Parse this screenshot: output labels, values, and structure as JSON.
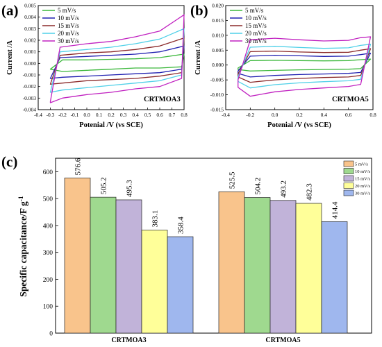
{
  "chart_data": [
    {
      "panel": "(a)",
      "type": "line",
      "subtype": "cyclic-voltammogram",
      "title": "",
      "xlabel": "Potenial /V (vs SCE)",
      "ylabel": "Current /A",
      "sample_label": "CRTMOA3",
      "xlim": [
        -0.4,
        0.8
      ],
      "ylim": [
        -0.004,
        0.005
      ],
      "xticks": [
        "-0.4",
        "-0.3",
        "-0.2",
        "-0.1",
        "0.0",
        "0.1",
        "0.2",
        "0.3",
        "0.4",
        "0.5",
        "0.6",
        "0.7",
        "0.8"
      ],
      "yticks": [
        "-0.004",
        "-0.003",
        "-0.002",
        "-0.001",
        "0.000",
        "0.001",
        "0.002",
        "0.003",
        "0.004",
        "0.005"
      ],
      "legend_position": "top-left",
      "series": [
        {
          "name": "5 mV/s",
          "color": "#3cb83c",
          "x": [
            -0.3,
            -0.2,
            0.0,
            0.2,
            0.4,
            0.6,
            0.8,
            0.78,
            0.6,
            0.4,
            0.2,
            0.0,
            -0.2,
            -0.3
          ],
          "y": [
            -0.0005,
            0.0003,
            0.0003,
            0.00035,
            0.0004,
            0.0005,
            0.0008,
            -0.0003,
            -0.0004,
            -0.0004,
            -0.0005,
            -0.0006,
            -0.0007,
            -0.0005
          ]
        },
        {
          "name": "10 mV/s",
          "color": "#1f1fb0",
          "x": [
            -0.3,
            -0.22,
            0.0,
            0.2,
            0.4,
            0.6,
            0.8,
            0.78,
            0.6,
            0.4,
            0.2,
            0.0,
            -0.2,
            -0.3
          ],
          "y": [
            -0.0013,
            0.0005,
            0.0006,
            0.0007,
            0.0008,
            0.001,
            0.0015,
            -0.0005,
            -0.0008,
            -0.0009,
            -0.001,
            -0.0011,
            -0.0012,
            -0.0013
          ]
        },
        {
          "name": "15 mV/s",
          "color": "#8b2a2a",
          "x": [
            -0.3,
            -0.22,
            0.0,
            0.2,
            0.4,
            0.6,
            0.8,
            0.78,
            0.6,
            0.4,
            0.2,
            0.0,
            -0.2,
            -0.3
          ],
          "y": [
            -0.0018,
            0.0007,
            0.0009,
            0.001,
            0.0012,
            0.0015,
            0.0022,
            -0.0008,
            -0.0011,
            -0.0013,
            -0.0014,
            -0.0015,
            -0.0017,
            -0.0018
          ]
        },
        {
          "name": "20 mV/s",
          "color": "#4fd0e8",
          "x": [
            -0.3,
            -0.22,
            0.0,
            0.2,
            0.4,
            0.6,
            0.8,
            0.78,
            0.6,
            0.4,
            0.2,
            0.0,
            -0.2,
            -0.3
          ],
          "y": [
            -0.0025,
            0.001,
            0.0012,
            0.0014,
            0.0017,
            0.0021,
            0.003,
            -0.001,
            -0.0015,
            -0.0017,
            -0.0019,
            -0.0021,
            -0.0023,
            -0.0025
          ]
        },
        {
          "name": "30 mV/s",
          "color": "#c020c0",
          "x": [
            -0.3,
            -0.22,
            0.0,
            0.2,
            0.4,
            0.6,
            0.8,
            0.78,
            0.6,
            0.4,
            0.2,
            0.0,
            -0.2,
            -0.3
          ],
          "y": [
            -0.0033,
            0.0014,
            0.0017,
            0.0019,
            0.0023,
            0.0028,
            0.0042,
            -0.0013,
            -0.002,
            -0.0022,
            -0.0025,
            -0.0027,
            -0.003,
            -0.0034
          ]
        }
      ]
    },
    {
      "panel": "(b)",
      "type": "line",
      "subtype": "cyclic-voltammogram",
      "title": "",
      "xlabel": "Potenial /V (vs SCE)",
      "ylabel": "Current /A",
      "sample_label": "CRTMOA5",
      "xlim": [
        -0.4,
        0.8
      ],
      "ylim": [
        -0.015,
        0.02
      ],
      "xticks": [
        "-0.4",
        "-0.2",
        "0.0",
        "0.2",
        "0.4",
        "0.6",
        "0.8"
      ],
      "yticks": [
        "-0.015",
        "-0.010",
        "-0.005",
        "0.000",
        "0.005",
        "0.010",
        "0.015",
        "0.020"
      ],
      "legend_position": "top-left",
      "series": [
        {
          "name": "5 mV/s",
          "color": "#3cb83c",
          "x": [
            -0.3,
            -0.2,
            0.0,
            0.2,
            0.4,
            0.6,
            0.7,
            0.78,
            0.7,
            0.6,
            0.4,
            0.2,
            0.0,
            -0.2,
            -0.3
          ],
          "y": [
            -0.001,
            0.0015,
            0.0016,
            0.0015,
            0.0014,
            0.0015,
            0.0018,
            0.002,
            -0.0012,
            -0.0014,
            -0.0015,
            -0.0016,
            -0.0018,
            -0.002,
            -0.0015
          ]
        },
        {
          "name": "10 mV/s",
          "color": "#1f1fb0",
          "x": [
            -0.3,
            -0.2,
            0.0,
            0.2,
            0.4,
            0.6,
            0.7,
            0.78,
            0.7,
            0.6,
            0.4,
            0.2,
            0.0,
            -0.2,
            -0.3
          ],
          "y": [
            -0.002,
            0.003,
            0.0033,
            0.0031,
            0.0029,
            0.003,
            0.0035,
            0.004,
            -0.0025,
            -0.0028,
            -0.003,
            -0.0032,
            -0.0035,
            -0.004,
            -0.0028
          ]
        },
        {
          "name": "15 mV/s",
          "color": "#8b2a2a",
          "x": [
            -0.3,
            -0.2,
            0.0,
            0.2,
            0.4,
            0.6,
            0.7,
            0.78,
            0.7,
            0.6,
            0.4,
            0.2,
            0.0,
            -0.2,
            -0.3
          ],
          "y": [
            -0.003,
            0.0045,
            0.0047,
            0.0044,
            0.0042,
            0.0043,
            0.005,
            0.0055,
            -0.0035,
            -0.004,
            -0.0042,
            -0.0045,
            -0.005,
            -0.0058,
            -0.004
          ]
        },
        {
          "name": "20 mV/s",
          "color": "#4fd0e8",
          "x": [
            -0.3,
            -0.2,
            0.0,
            0.2,
            0.4,
            0.6,
            0.7,
            0.78,
            0.7,
            0.6,
            0.4,
            0.2,
            0.0,
            -0.2,
            -0.3
          ],
          "y": [
            -0.004,
            0.006,
            0.0063,
            0.0059,
            0.0056,
            0.0058,
            0.0066,
            0.007,
            -0.0048,
            -0.0053,
            -0.0056,
            -0.006,
            -0.0066,
            -0.0077,
            -0.0055
          ]
        },
        {
          "name": "30 mV/s",
          "color": "#c020c0",
          "x": [
            -0.3,
            -0.2,
            0.0,
            0.2,
            0.4,
            0.6,
            0.7,
            0.78,
            0.7,
            0.6,
            0.4,
            0.2,
            0.0,
            -0.2,
            -0.3
          ],
          "y": [
            -0.005,
            0.0085,
            0.009,
            0.0085,
            0.0081,
            0.0083,
            0.0092,
            0.0095,
            -0.0065,
            -0.0072,
            -0.0077,
            -0.0082,
            -0.009,
            -0.0105,
            -0.0075
          ]
        }
      ]
    },
    {
      "panel": "(c)",
      "type": "bar",
      "title": "",
      "xlabel": "",
      "ylabel": "Specific capacitance/F g-1",
      "ylim": [
        0,
        650
      ],
      "yticks": [
        0,
        100,
        200,
        300,
        400,
        500,
        600
      ],
      "categories": [
        "CRTMOA3",
        "CRTMOA5"
      ],
      "legend_position": "top-right",
      "series": [
        {
          "name": "5 mV/s",
          "color": "#f9c48c",
          "values": [
            576.6,
            525.5
          ]
        },
        {
          "name": "10 mV/s",
          "color": "#9fd98f",
          "values": [
            505.2,
            504.2
          ]
        },
        {
          "name": "15 mV/s",
          "color": "#c1b3d9",
          "values": [
            495.3,
            493.2
          ]
        },
        {
          "name": "20 mV/s",
          "color": "#ffff99",
          "values": [
            383.1,
            482.3
          ]
        },
        {
          "name": "30 mV/s",
          "color": "#9fb7ee",
          "values": [
            358.4,
            414.4
          ]
        }
      ]
    }
  ]
}
